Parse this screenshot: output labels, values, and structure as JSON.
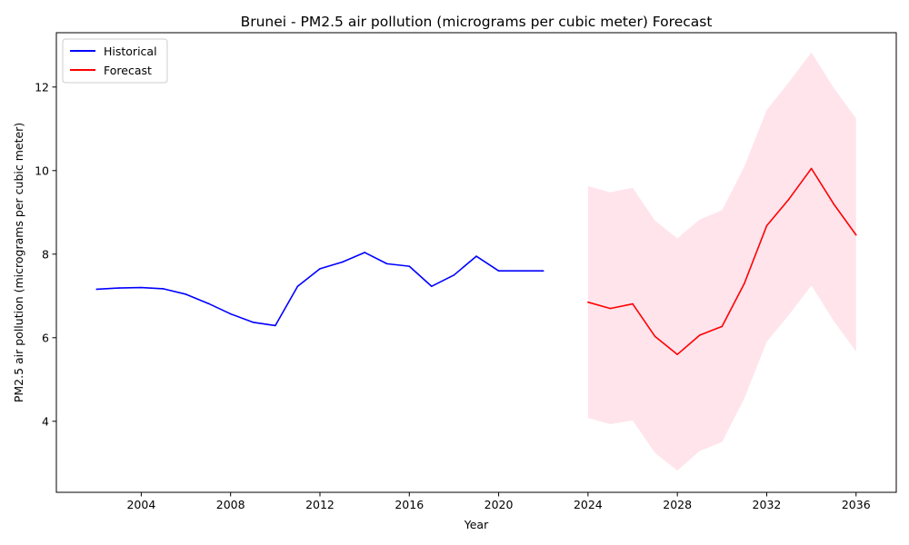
{
  "chart_data": {
    "type": "line",
    "title": "Brunei - PM2.5 air pollution (micrograms per cubic meter) Forecast",
    "xlabel": "Year",
    "ylabel": "PM2.5 air pollution (micrograms per cubic meter)",
    "xlim": [
      2000.2,
      2037.8
    ],
    "ylim": [
      2.3,
      13.3
    ],
    "x_ticks": [
      2004,
      2008,
      2012,
      2016,
      2020,
      2024,
      2028,
      2032,
      2036
    ],
    "y_ticks": [
      4,
      6,
      8,
      10,
      12
    ],
    "grid": false,
    "legend_position": "top-left",
    "series": [
      {
        "name": "Historical",
        "color": "#0000ff",
        "x": [
          2002,
          2003,
          2004,
          2005,
          2006,
          2007,
          2008,
          2009,
          2010,
          2011,
          2012,
          2013,
          2014,
          2015,
          2016,
          2017,
          2018,
          2019,
          2020,
          2021,
          2022
        ],
        "y": [
          7.16,
          7.19,
          7.2,
          7.17,
          7.04,
          6.82,
          6.57,
          6.37,
          6.29,
          7.23,
          7.65,
          7.81,
          8.04,
          7.77,
          7.71,
          7.23,
          7.5,
          7.95,
          7.6,
          7.6,
          7.6
        ]
      },
      {
        "name": "Forecast",
        "color": "#ff0000",
        "x": [
          2024,
          2025,
          2026,
          2027,
          2028,
          2029,
          2030,
          2031,
          2032,
          2033,
          2034,
          2035,
          2036
        ],
        "y": [
          6.85,
          6.7,
          6.81,
          6.03,
          5.6,
          6.06,
          6.27,
          7.3,
          8.68,
          9.32,
          10.05,
          9.2,
          8.46
        ],
        "lower": [
          4.08,
          3.93,
          4.02,
          3.24,
          2.82,
          3.29,
          3.5,
          4.55,
          5.9,
          6.55,
          7.25,
          6.4,
          5.67
        ],
        "upper": [
          9.63,
          9.48,
          9.59,
          8.8,
          8.38,
          8.83,
          9.05,
          10.1,
          11.45,
          12.12,
          12.83,
          11.98,
          11.25
        ],
        "band_color": "#ffe4ec"
      }
    ]
  }
}
